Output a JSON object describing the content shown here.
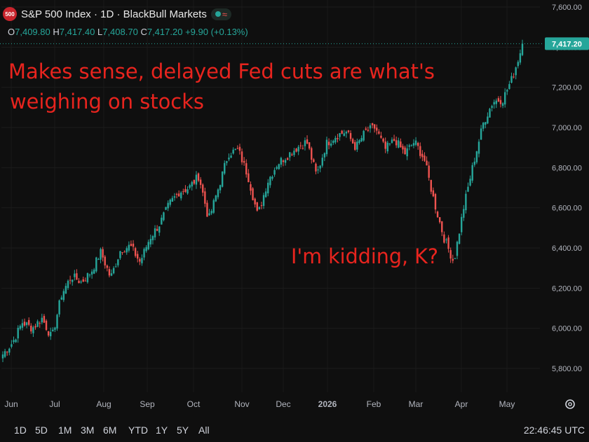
{
  "header": {
    "logo_text": "500",
    "title": "S&P 500 Index · 1D · BlackBull Markets",
    "ohlc": {
      "o_label": "O",
      "o": "7,409.80",
      "h_label": "H",
      "h": "7,417.40",
      "l_label": "L",
      "l": "7,408.70",
      "c_label": "C",
      "c": "7,417.20",
      "change": "+9.90 (+0.13%)"
    }
  },
  "annotations": {
    "top_line1": "Makes sense, delayed Fed cuts are what's",
    "top_line2": "weighing on stocks",
    "middle": "I'm kidding, K?"
  },
  "price_label": "7,417.20",
  "ranges": [
    "1D",
    "5D",
    "1M",
    "3M",
    "6M",
    "YTD",
    "1Y",
    "5Y",
    "All"
  ],
  "clock": "22:46:45 UTC",
  "colors": {
    "up": "#26a69a",
    "down": "#ef5350",
    "annotation": "#e8241e",
    "background": "#0f0f0f"
  },
  "chart_data": {
    "type": "candlestick",
    "ylim": [
      5700,
      7600
    ],
    "y_ticks": [
      5800,
      6000,
      6200,
      6400,
      6600,
      6800,
      7000,
      7200,
      7400,
      7600
    ],
    "y_tick_labels": [
      "5,800.00",
      "6,000.00",
      "6,200.00",
      "6,400.00",
      "6,600.00",
      "6,800.00",
      "7,000.00",
      "7,200.00",
      "7,400.00",
      "7,600.00"
    ],
    "x_tick_labels": [
      "Jun",
      "Jul",
      "Aug",
      "Sep",
      "Oct",
      "Nov",
      "Dec",
      "2026",
      "Feb",
      "Mar",
      "Apr",
      "May"
    ],
    "last_price": 7417.2,
    "closes": [
      5870,
      5930,
      6030,
      6000,
      6050,
      5950,
      6170,
      6260,
      6230,
      6280,
      6380,
      6250,
      6390,
      6410,
      6330,
      6450,
      6520,
      6620,
      6680,
      6700,
      6760,
      6540,
      6700,
      6870,
      6890,
      6760,
      6560,
      6730,
      6820,
      6860,
      6900,
      6930,
      6760,
      6920,
      6960,
      6980,
      6900,
      6980,
      7000,
      6890,
      6940,
      6870,
      6930,
      6840,
      6630,
      6450,
      6330,
      6600,
      6820,
      7020,
      7130,
      7140,
      7250,
      7410
    ]
  }
}
